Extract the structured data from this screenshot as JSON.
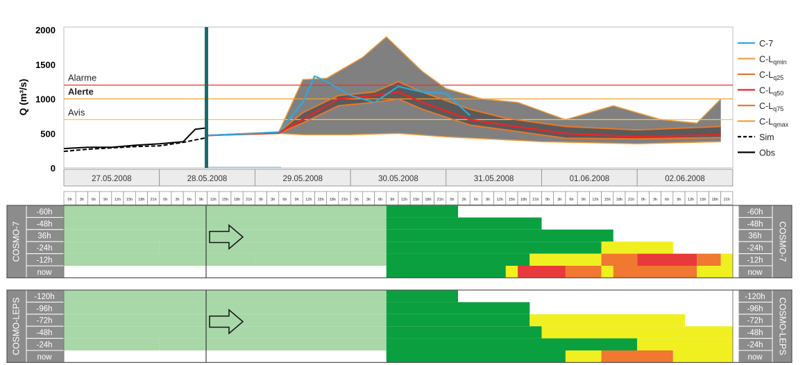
{
  "colors": {
    "c7": "#2ba9e0",
    "ens_band": "#808080",
    "ens_band_inner": "#5a5a5a",
    "ens_edge": "#f0a040",
    "q25": "#e8782a",
    "q50": "#e8262a",
    "q75": "#e8782a",
    "sim": "#000000",
    "obs": "#000000",
    "alarme": "#e83030",
    "alerte": "#f0a030",
    "avis": "#f0d030",
    "now_marker": "#1a6b6b",
    "grid_light": "#a8d8a8",
    "grid_green": "#0aa040",
    "grid_yellow": "#f0f020",
    "grid_orange": "#f07830",
    "grid_red": "#e83a3a",
    "side_band": "#8c8c8c"
  },
  "chart_data": {
    "type": "line",
    "ylabel": "Q (m³/s)",
    "ylim": [
      0,
      2000
    ],
    "yticks": [
      0,
      500,
      1000,
      1500,
      2000
    ],
    "x_range_days": [
      "26.05.2008",
      "03.06.2008"
    ],
    "date_labels": [
      "27.05.2008",
      "28.05.2008",
      "29.05.2008",
      "30.05.2008",
      "31.05.2008",
      "01.06.2008",
      "02.06.2008"
    ],
    "hour_labels": [
      "0h",
      "3h",
      "6h",
      "9h",
      "12h",
      "15h",
      "18h",
      "21h"
    ],
    "thresholds": [
      {
        "label": "Alarme",
        "value": 1200
      },
      {
        "label": "Alerte",
        "value": 1000
      },
      {
        "label": "Avis",
        "value": 700
      }
    ],
    "legend": [
      {
        "label": "C-7",
        "sub": ""
      },
      {
        "label": "C-L",
        "sub": "qmin"
      },
      {
        "label": "C-L",
        "sub": "q25"
      },
      {
        "label": "C-L",
        "sub": "q50"
      },
      {
        "label": "C-L",
        "sub": "q75"
      },
      {
        "label": "C-L",
        "sub": "qmax"
      },
      {
        "label": "Sim",
        "sub": ""
      },
      {
        "label": "Obs",
        "sub": ""
      }
    ],
    "forecast_start": "28.05.2008 12h",
    "series": [
      {
        "name": "C-7",
        "x": [
          "28.05.2008 12h",
          "29.05.2008 0h",
          "29.05.2008 6h",
          "29.05.2008 12h",
          "29.05.2008 15h",
          "29.05.2008 18h",
          "30.05.2008 0h",
          "30.05.2008 6h",
          "30.05.2008 12h",
          "30.05.2008 18h",
          "31.05.2008 0h",
          "31.05.2008 6h"
        ],
        "y": [
          470,
          500,
          520,
          950,
          1330,
          1250,
          1050,
          950,
          1180,
          1100,
          1080,
          760
        ]
      },
      {
        "name": "C-L qmax",
        "x": [
          "28.05.2008 12h",
          "29.05.2008 6h",
          "29.05.2008 12h",
          "29.05.2008 18h",
          "30.05.2008 3h",
          "30.05.2008 9h",
          "30.05.2008 18h",
          "31.05.2008 0h",
          "31.05.2008 9h",
          "31.05.2008 18h",
          "01.06.2008 6h",
          "01.06.2008 18h",
          "02.06.2008 6h",
          "02.06.2008 15h",
          "02.06.2008 21h"
        ],
        "y": [
          470,
          520,
          1280,
          1300,
          1600,
          1900,
          1400,
          1150,
          1000,
          950,
          700,
          900,
          700,
          650,
          1000
        ]
      },
      {
        "name": "C-L q75",
        "x": [
          "28.05.2008 12h",
          "29.05.2008 6h",
          "29.05.2008 12h",
          "29.05.2008 21h",
          "30.05.2008 6h",
          "30.05.2008 12h",
          "30.05.2008 18h",
          "31.05.2008 6h",
          "31.05.2008 15h",
          "01.06.2008 6h",
          "02.06.2008 0h",
          "02.06.2008 21h"
        ],
        "y": [
          470,
          520,
          800,
          1050,
          1100,
          1250,
          1100,
          850,
          720,
          600,
          550,
          600
        ]
      },
      {
        "name": "C-L q50",
        "x": [
          "28.05.2008 12h",
          "29.05.2008 6h",
          "29.05.2008 12h",
          "29.05.2008 21h",
          "30.05.2008 6h",
          "30.05.2008 12h",
          "30.05.2008 18h",
          "31.05.2008 6h",
          "31.05.2008 15h",
          "01.06.2008 6h",
          "02.06.2008 0h",
          "02.06.2008 21h"
        ],
        "y": [
          470,
          510,
          700,
          1000,
          1050,
          1100,
          950,
          700,
          620,
          500,
          450,
          480
        ]
      },
      {
        "name": "C-L q25",
        "x": [
          "28.05.2008 12h",
          "29.05.2008 6h",
          "29.05.2008 12h",
          "29.05.2008 21h",
          "30.05.2008 6h",
          "30.05.2008 12h",
          "30.05.2008 18h",
          "31.05.2008 6h",
          "31.05.2008 15h",
          "01.06.2008 6h",
          "02.06.2008 0h",
          "02.06.2008 21h"
        ],
        "y": [
          470,
          500,
          650,
          900,
          950,
          1000,
          850,
          620,
          550,
          430,
          420,
          440
        ]
      },
      {
        "name": "C-L qmin",
        "x": [
          "28.05.2008 12h",
          "29.05.2008 6h",
          "29.05.2008 12h",
          "30.05.2008 0h",
          "30.05.2008 12h",
          "31.05.2008 0h",
          "01.06.2008 0h",
          "02.06.2008 0h",
          "02.06.2008 21h"
        ],
        "y": [
          470,
          500,
          480,
          480,
          500,
          450,
          380,
          350,
          380
        ]
      },
      {
        "name": "Sim",
        "x": [
          "27.05.2008 0h",
          "27.05.2008 6h",
          "27.05.2008 12h",
          "27.05.2008 18h",
          "28.05.2008 0h",
          "28.05.2008 6h",
          "28.05.2008 12h"
        ],
        "y": [
          240,
          270,
          290,
          310,
          320,
          370,
          440
        ]
      },
      {
        "name": "Obs",
        "x": [
          "27.05.2008 0h",
          "27.05.2008 6h",
          "27.05.2008 12h",
          "27.05.2008 18h",
          "28.05.2008 0h",
          "28.05.2008 6h",
          "28.05.2008 9h",
          "28.05.2008 12h"
        ],
        "y": [
          280,
          300,
          300,
          330,
          350,
          380,
          560,
          580
        ]
      }
    ]
  },
  "panels": [
    {
      "title": "COSMO-7",
      "rows": [
        "-60h",
        "-48h",
        "36h",
        "-24h",
        "-12h",
        "now"
      ],
      "right_rows": [
        "-60h",
        "-48h",
        "36h",
        "-24h",
        "-12h",
        "now"
      ],
      "cells": [
        [
          [
            "light",
            0,
            27
          ],
          [
            "green",
            27,
            33
          ],
          [
            "white",
            33,
            999
          ]
        ],
        [
          [
            "light",
            0,
            27
          ],
          [
            "green",
            27,
            40
          ],
          [
            "white",
            40,
            999
          ]
        ],
        [
          [
            "light",
            0,
            27
          ],
          [
            "green",
            27,
            46
          ],
          [
            "white",
            46,
            999
          ]
        ],
        [
          [
            "light",
            0,
            8
          ],
          [
            "white",
            0,
            8
          ],
          [
            "light",
            8,
            27
          ],
          [
            "green",
            27,
            45
          ],
          [
            "yellow",
            45,
            51
          ],
          [
            "white",
            51,
            999
          ]
        ],
        [
          [
            "light",
            0,
            16
          ],
          [
            "white",
            0,
            16
          ],
          [
            "light",
            16,
            27
          ],
          [
            "green",
            27,
            39
          ],
          [
            "yellow",
            39,
            45
          ],
          [
            "orange",
            45,
            48
          ],
          [
            "red",
            48,
            53
          ],
          [
            "orange",
            53,
            55
          ],
          [
            "yellow",
            55,
            57
          ],
          [
            "white",
            57,
            999
          ]
        ],
        [
          [
            "white",
            0,
            27
          ],
          [
            "green",
            27,
            37
          ],
          [
            "yellow",
            37,
            38
          ],
          [
            "red",
            38,
            42
          ],
          [
            "orange",
            42,
            45
          ],
          [
            "yellow",
            45,
            46
          ],
          [
            "orange",
            46,
            53
          ],
          [
            "yellow",
            53,
            56
          ],
          [
            "white",
            56,
            999
          ]
        ]
      ]
    },
    {
      "title": "COSMO-LEPS",
      "rows": [
        "-120h",
        "-96h",
        "-72h",
        "-48h",
        "-24h",
        "now"
      ],
      "right_rows": [
        "-120h",
        "-96h",
        "-72h",
        "-48h",
        "-24h",
        "now"
      ],
      "cells": [
        [
          [
            "light",
            0,
            27
          ],
          [
            "green",
            27,
            33
          ],
          [
            "white",
            33,
            999
          ]
        ],
        [
          [
            "light",
            0,
            27
          ],
          [
            "green",
            27,
            39
          ],
          [
            "white",
            39,
            999
          ]
        ],
        [
          [
            "light",
            0,
            27
          ],
          [
            "green",
            27,
            39
          ],
          [
            "yellow",
            39,
            52
          ],
          [
            "white",
            52,
            999
          ]
        ],
        [
          [
            "light",
            0,
            27
          ],
          [
            "green",
            27,
            40
          ],
          [
            "yellow",
            40,
            56
          ],
          [
            "green",
            56,
            62
          ],
          [
            "white",
            62,
            999
          ]
        ],
        [
          [
            "light",
            0,
            8
          ],
          [
            "white",
            0,
            8
          ],
          [
            "light",
            8,
            27
          ],
          [
            "green",
            27,
            48
          ],
          [
            "yellow",
            48,
            59
          ],
          [
            "green",
            59,
            75
          ],
          [
            "white",
            75,
            999
          ]
        ],
        [
          [
            "white",
            0,
            27
          ],
          [
            "green",
            27,
            42
          ],
          [
            "yellow",
            42,
            45
          ],
          [
            "orange",
            45,
            51
          ],
          [
            "yellow",
            51,
            57
          ],
          [
            "green",
            57,
            999
          ]
        ]
      ]
    }
  ]
}
